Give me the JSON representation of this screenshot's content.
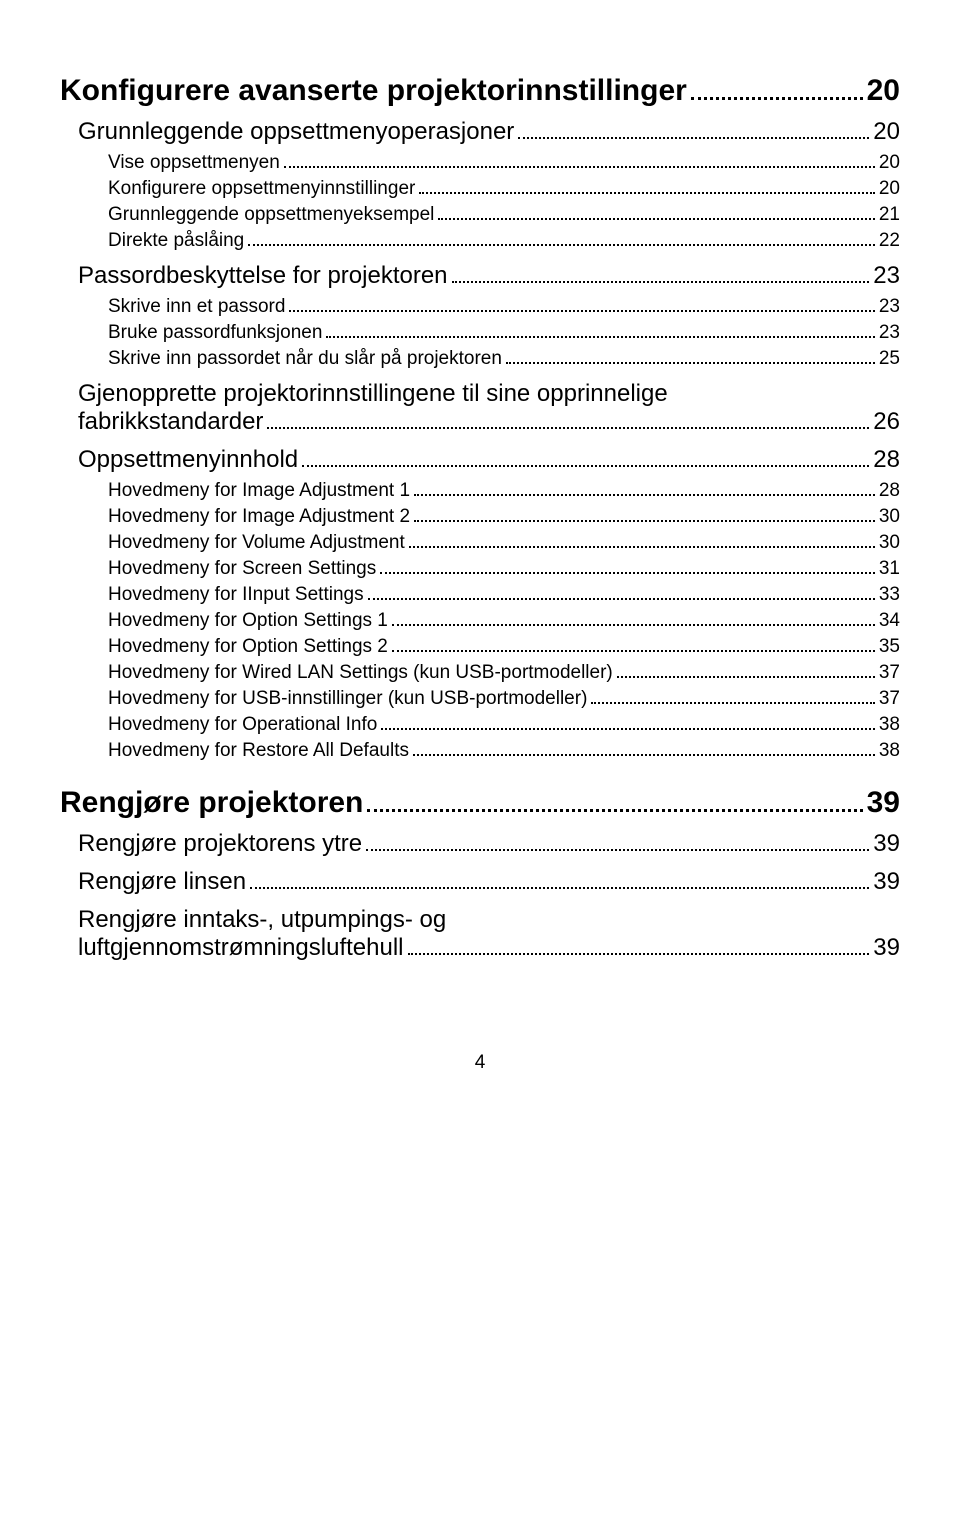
{
  "toc": [
    {
      "level": 1,
      "title": "Konfigurere avanserte projektorinnstillinger",
      "page": "20"
    },
    {
      "level": 2,
      "title": "Grunnleggende oppsettmenyoperasjoner",
      "page": "20"
    },
    {
      "level": 3,
      "title": "Vise oppsettmenyen",
      "page": "20"
    },
    {
      "level": 3,
      "title": "Konfigurere oppsettmenyinnstillinger",
      "page": "20"
    },
    {
      "level": 3,
      "title": "Grunnleggende oppsettmenyeksempel",
      "page": "21"
    },
    {
      "level": 3,
      "title": "Direkte påslåing",
      "page": "22"
    },
    {
      "level": 2,
      "title": "Passordbeskyttelse for projektoren",
      "page": "23"
    },
    {
      "level": 3,
      "title": "Skrive inn et passord",
      "page": "23"
    },
    {
      "level": 3,
      "title": "Bruke passordfunksjonen",
      "page": "23"
    },
    {
      "level": 3,
      "title": "Skrive inn passordet når du slår på projektoren",
      "page": "25"
    },
    {
      "level": 2,
      "title": "Gjenopprette projektorinnstillingene til sine opprinnelige fabrikkstandarder",
      "page": "26"
    },
    {
      "level": 2,
      "title": "Oppsettmenyinnhold",
      "page": "28"
    },
    {
      "level": 3,
      "title": "Hovedmeny for Image Adjustment 1",
      "page": "28"
    },
    {
      "level": 3,
      "title": "Hovedmeny for Image Adjustment 2",
      "page": "30"
    },
    {
      "level": 3,
      "title": "Hovedmeny for Volume Adjustment",
      "page": "30"
    },
    {
      "level": 3,
      "title": "Hovedmeny for Screen Settings",
      "page": "31"
    },
    {
      "level": 3,
      "title": "Hovedmeny for IInput Settings",
      "page": "33"
    },
    {
      "level": 3,
      "title": "Hovedmeny for Option Settings 1",
      "page": "34"
    },
    {
      "level": 3,
      "title": "Hovedmeny for Option Settings 2",
      "page": "35"
    },
    {
      "level": 3,
      "title": "Hovedmeny for Wired LAN Settings (kun USB-portmodeller)",
      "page": "37"
    },
    {
      "level": 3,
      "title": "Hovedmeny for USB-innstillinger (kun USB-portmodeller)",
      "page": "37"
    },
    {
      "level": 3,
      "title": "Hovedmeny for Operational Info",
      "page": "38"
    },
    {
      "level": 3,
      "title": "Hovedmeny for Restore All Defaults",
      "page": "38"
    },
    {
      "level": 1,
      "title": "Rengjøre projektoren",
      "page": "39"
    },
    {
      "level": 2,
      "title": "Rengjøre projektorens ytre",
      "page": "39"
    },
    {
      "level": 2,
      "title": "Rengjøre linsen",
      "page": "39"
    },
    {
      "level": 2,
      "title": "Rengjøre inntaks-, utpumpings- og luftgjennomstrømningsluftehull",
      "page": "39"
    }
  ],
  "pageNumber": "4",
  "styles": {
    "level1_fontsize": 30,
    "level2_fontsize": 24,
    "level3_fontsize": 19,
    "text_color": "#000000",
    "background_color": "#ffffff"
  }
}
